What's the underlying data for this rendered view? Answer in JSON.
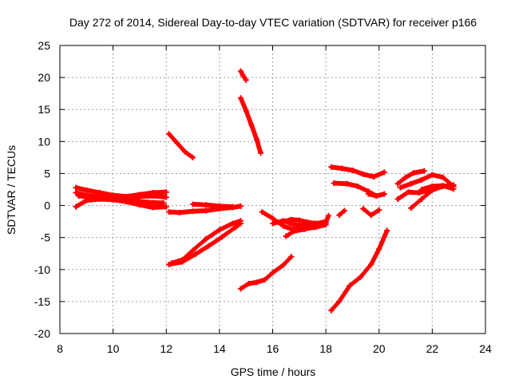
{
  "chart_data": {
    "type": "scatter",
    "title": "Day 272 of 2014, Sidereal Day-to-day VTEC variation (SDTVAR) for receiver p166",
    "xlabel": "GPS time / hours",
    "ylabel": "SDTVAR / TECUs",
    "xlim": [
      8,
      24
    ],
    "ylim": [
      -20,
      25
    ],
    "xticks": [
      "8",
      "10",
      "12",
      "14",
      "16",
      "18",
      "20",
      "22",
      "24"
    ],
    "yticks": [
      "-20",
      "-15",
      "-10",
      "-5",
      "0",
      "5",
      "10",
      "15",
      "20",
      "25"
    ],
    "grid": true,
    "marker": "plus",
    "color": "#ff0000",
    "series": [
      {
        "x": [
          8.6,
          9.0,
          9.5,
          10.0,
          10.5,
          11.0,
          11.5,
          12.0
        ],
        "y": [
          2.8,
          2.4,
          2.0,
          1.6,
          1.4,
          1.7,
          2.0,
          2.1
        ]
      },
      {
        "x": [
          8.6,
          9.0,
          9.5,
          10.0,
          10.5,
          11.0,
          11.5,
          12.0
        ],
        "y": [
          2.0,
          1.6,
          1.3,
          1.1,
          1.2,
          1.4,
          1.5,
          1.3
        ]
      },
      {
        "x": [
          8.6,
          9.0,
          9.5,
          10.0,
          10.5,
          11.0,
          11.5,
          12.0
        ],
        "y": [
          -0.2,
          0.8,
          1.0,
          0.9,
          0.6,
          0.1,
          -0.3,
          -0.2
        ]
      },
      {
        "x": [
          8.7,
          9.2,
          9.8,
          10.3,
          10.8,
          11.3,
          11.9
        ],
        "y": [
          1.5,
          1.3,
          1.1,
          1.0,
          0.7,
          0.5,
          0.4
        ]
      },
      {
        "x": [
          12.1,
          12.5,
          13.0,
          13.5,
          14.0,
          14.5,
          14.8
        ],
        "y": [
          -1.0,
          -1.1,
          -0.9,
          -0.8,
          -0.5,
          -0.3,
          -0.1
        ]
      },
      {
        "x": [
          13.0,
          13.5,
          14.0,
          14.5
        ],
        "y": [
          0.2,
          0.1,
          -0.1,
          -0.2
        ]
      },
      {
        "x": [
          12.1,
          12.4,
          12.7,
          13.0
        ],
        "y": [
          11.2,
          9.8,
          8.4,
          7.5
        ]
      },
      {
        "x": [
          12.2,
          12.6,
          13.0,
          13.5,
          14.0,
          14.5,
          14.8
        ],
        "y": [
          -9.0,
          -8.5,
          -7.0,
          -5.2,
          -3.8,
          -2.8,
          -2.4
        ]
      },
      {
        "x": [
          12.1,
          12.6,
          13.1,
          13.6,
          14.1,
          14.6,
          14.8
        ],
        "y": [
          -9.2,
          -8.8,
          -7.6,
          -6.3,
          -4.9,
          -3.4,
          -2.8
        ]
      },
      {
        "x": [
          14.8,
          14.9,
          15.0
        ],
        "y": [
          21.0,
          20.2,
          19.6
        ]
      },
      {
        "x": [
          14.8,
          15.0,
          15.2,
          15.4,
          15.55
        ],
        "y": [
          16.8,
          14.8,
          12.6,
          10.3,
          8.2
        ]
      },
      {
        "x": [
          14.8,
          15.1,
          15.4,
          15.7,
          16.0,
          16.4,
          16.7
        ],
        "y": [
          -13.0,
          -12.2,
          -12.0,
          -11.6,
          -10.5,
          -9.3,
          -8.0
        ]
      },
      {
        "x": [
          15.6,
          16.0,
          16.4,
          16.8,
          17.2,
          17.6,
          18.0
        ],
        "y": [
          -1.0,
          -2.0,
          -3.2,
          -3.8,
          -3.6,
          -3.4,
          -3.0
        ]
      },
      {
        "x": [
          16.0,
          16.4,
          16.8,
          17.2,
          17.6,
          18.0
        ],
        "y": [
          -2.8,
          -2.4,
          -3.0,
          -3.2,
          -2.9,
          -2.5
        ]
      },
      {
        "x": [
          16.5,
          16.8,
          17.2,
          17.6,
          18.0
        ],
        "y": [
          -4.8,
          -4.0,
          -3.7,
          -3.3,
          -2.7
        ]
      },
      {
        "x": [
          16.4,
          16.7,
          17.0,
          17.3,
          17.6,
          18.0,
          18.1
        ],
        "y": [
          -2.5,
          -2.2,
          -2.3,
          -2.6,
          -2.8,
          -2.6,
          -1.6
        ]
      },
      {
        "x": [
          18.2,
          18.6,
          19.0,
          19.4,
          19.8,
          20.2
        ],
        "y": [
          6.0,
          5.8,
          5.5,
          4.9,
          4.5,
          5.2
        ]
      },
      {
        "x": [
          18.3,
          18.8,
          19.2,
          19.6,
          19.9
        ],
        "y": [
          3.5,
          3.4,
          3.0,
          2.2,
          1.5
        ]
      },
      {
        "x": [
          19.6,
          19.9,
          20.2
        ],
        "y": [
          1.8,
          1.5,
          1.8
        ]
      },
      {
        "x": [
          18.5,
          18.7
        ],
        "y": [
          -1.5,
          -0.8
        ]
      },
      {
        "x": [
          19.4,
          19.7,
          20.0
        ],
        "y": [
          -0.5,
          -1.5,
          -0.7
        ]
      },
      {
        "x": [
          18.2,
          18.5,
          18.9,
          19.3,
          19.7,
          20.0,
          20.3
        ],
        "y": [
          -16.4,
          -15.0,
          -12.5,
          -11.2,
          -9.2,
          -6.8,
          -3.9
        ]
      },
      {
        "x": [
          20.7,
          21.0,
          21.3,
          21.7
        ],
        "y": [
          3.4,
          4.4,
          5.1,
          5.4
        ]
      },
      {
        "x": [
          20.8,
          21.2,
          21.6,
          22.0,
          22.4,
          22.8
        ],
        "y": [
          2.8,
          3.4,
          4.0,
          4.8,
          4.4,
          3.0
        ]
      },
      {
        "x": [
          20.7,
          21.1,
          21.5,
          21.9
        ],
        "y": [
          1.0,
          2.1,
          2.0,
          2.4
        ]
      },
      {
        "x": [
          21.2,
          21.6,
          22.0,
          22.4,
          22.8
        ],
        "y": [
          -0.4,
          1.0,
          2.4,
          3.0,
          3.2
        ]
      },
      {
        "x": [
          21.6,
          22.0,
          22.4,
          22.8
        ],
        "y": [
          2.5,
          3.0,
          3.1,
          2.6
        ]
      }
    ]
  }
}
